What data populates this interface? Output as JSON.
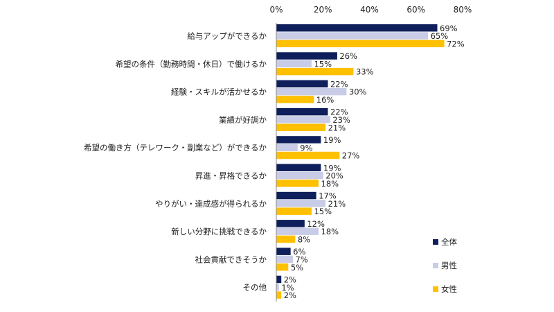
{
  "chart_data": {
    "type": "bar",
    "orientation": "horizontal",
    "categories": [
      "給与アップができるか",
      "希望の条件（勤務時間・休日）で働けるか",
      "経験・スキルが活かせるか",
      "業績が好調か",
      "希望の働き方（テレワーク・副業など）ができるか",
      "昇進・昇格できるか",
      "やりがい・達成感が得られるか",
      "新しい分野に挑戦できるか",
      "社会貢献できそうか",
      "その他"
    ],
    "series": [
      {
        "name": "全体",
        "color": "#0f1f5c",
        "values": [
          69,
          26,
          22,
          22,
          19,
          19,
          17,
          12,
          6,
          2
        ]
      },
      {
        "name": "男性",
        "color": "#c8cce6",
        "values": [
          65,
          15,
          30,
          23,
          9,
          20,
          21,
          18,
          7,
          1
        ]
      },
      {
        "name": "女性",
        "color": "#ffc000",
        "values": [
          72,
          33,
          16,
          21,
          27,
          18,
          15,
          8,
          5,
          2
        ]
      }
    ],
    "xlim": [
      0,
      80
    ],
    "xticks": [
      0,
      20,
      40,
      60,
      80
    ],
    "tick_suffix": "%",
    "value_suffix": "%",
    "axis_position": "top",
    "grid": false,
    "legend_position": "bottom-right"
  }
}
